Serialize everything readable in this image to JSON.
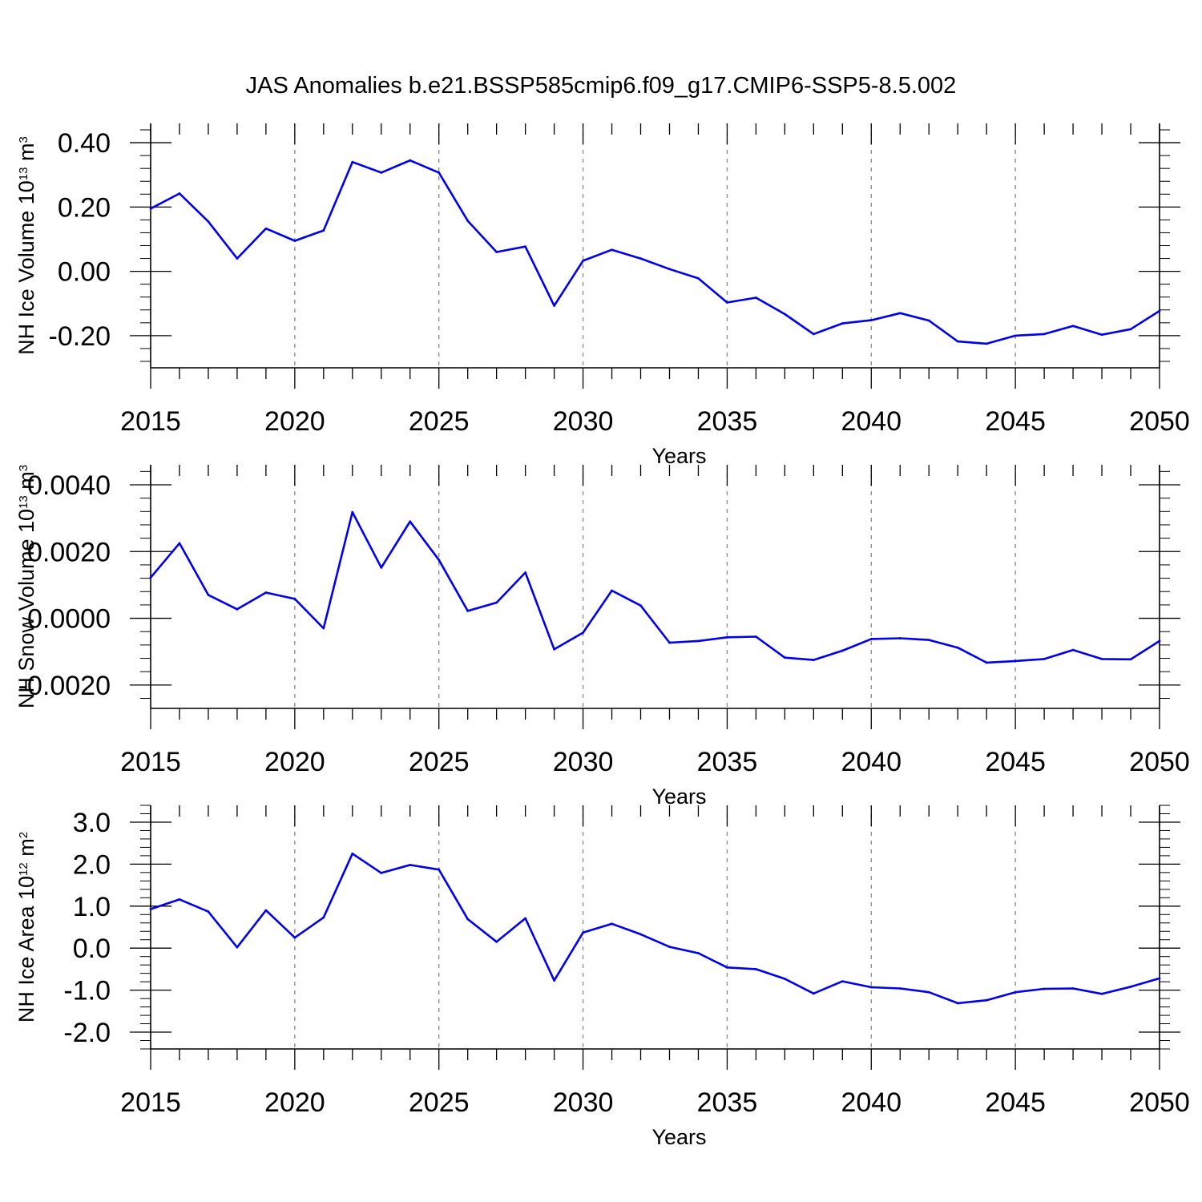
{
  "title": "JAS Anomalies b.e21.BSSP585cmip6.f09_g17.CMIP6-SSP5-8.5.002",
  "colors": {
    "line": "#0000ee",
    "axes": "#000000",
    "grid": "#888888"
  },
  "chart_data": [
    {
      "type": "line",
      "ylabel": {
        "text": "NH Ice Volume 10",
        "exp": "13",
        "unit": " m",
        "unit_exp": "3"
      },
      "xlabel": "Years",
      "xlim": [
        2015,
        2050
      ],
      "ylim": [
        -0.3,
        0.46
      ],
      "xticks": [
        2015,
        2020,
        2025,
        2030,
        2035,
        2040,
        2045,
        2050
      ],
      "xtick_labels": [
        "2015",
        "2020",
        "2025",
        "2030",
        "2035",
        "2040",
        "2045",
        "2050"
      ],
      "yticks": [
        0.4,
        0.2,
        0.0,
        -0.2
      ],
      "ytick_labels": [
        "0.40",
        "0.20",
        "0.00",
        "-0.20"
      ],
      "grid_x": [
        2020,
        2025,
        2030,
        2035,
        2040,
        2045
      ],
      "x": [
        2015,
        2016,
        2017,
        2018,
        2019,
        2020,
        2021,
        2022,
        2023,
        2024,
        2025,
        2026,
        2027,
        2028,
        2029,
        2030,
        2031,
        2032,
        2033,
        2034,
        2035,
        2036,
        2037,
        2038,
        2039,
        2040,
        2041,
        2042,
        2043,
        2044,
        2045,
        2046,
        2047,
        2048,
        2049,
        2050
      ],
      "values": [
        0.195,
        0.242,
        0.155,
        0.04,
        0.133,
        0.095,
        0.127,
        0.34,
        0.307,
        0.345,
        0.307,
        0.157,
        0.06,
        0.077,
        -0.107,
        0.033,
        0.067,
        0.04,
        0.007,
        -0.022,
        -0.097,
        -0.082,
        -0.133,
        -0.195,
        -0.162,
        -0.152,
        -0.13,
        -0.153,
        -0.218,
        -0.225,
        -0.2,
        -0.195,
        -0.17,
        -0.197,
        -0.18,
        -0.123
      ]
    },
    {
      "type": "line",
      "ylabel": {
        "text": "NH Snow Volume 10",
        "exp": "13",
        "unit": " m",
        "unit_exp": "3"
      },
      "xlabel": "Years",
      "xlim": [
        2015,
        2050
      ],
      "ylim": [
        -0.0027,
        0.0046
      ],
      "xticks": [
        2015,
        2020,
        2025,
        2030,
        2035,
        2040,
        2045,
        2050
      ],
      "xtick_labels": [
        "2015",
        "2020",
        "2025",
        "2030",
        "2035",
        "2040",
        "2045",
        "2050"
      ],
      "yticks": [
        0.004,
        0.002,
        0.0,
        -0.002
      ],
      "ytick_labels": [
        "0.0040",
        "0.0020",
        "0.0000",
        "-0.0020"
      ],
      "grid_x": [
        2020,
        2025,
        2030,
        2035,
        2040,
        2045
      ],
      "x": [
        2015,
        2016,
        2017,
        2018,
        2019,
        2020,
        2021,
        2022,
        2023,
        2024,
        2025,
        2026,
        2027,
        2028,
        2029,
        2030,
        2031,
        2032,
        2033,
        2034,
        2035,
        2036,
        2037,
        2038,
        2039,
        2040,
        2041,
        2042,
        2043,
        2044,
        2045,
        2046,
        2047,
        2048,
        2049,
        2050
      ],
      "values": [
        0.00122,
        0.00225,
        0.0007,
        0.00027,
        0.00077,
        0.00058,
        -0.0003,
        0.00318,
        0.00152,
        0.0029,
        0.00175,
        0.00022,
        0.00047,
        0.00137,
        -0.00093,
        -0.00043,
        0.00083,
        0.00038,
        -0.00073,
        -0.00068,
        -0.00057,
        -0.00055,
        -0.00118,
        -0.00125,
        -0.00097,
        -0.00062,
        -0.0006,
        -0.00065,
        -0.00088,
        -0.00133,
        -0.00128,
        -0.00122,
        -0.00095,
        -0.00122,
        -0.00123,
        -0.00068
      ]
    },
    {
      "type": "line",
      "ylabel": {
        "text": "NH Ice Area 10",
        "exp": "12",
        "unit": " m",
        "unit_exp": "2"
      },
      "xlabel": "Years",
      "xlim": [
        2015,
        2050
      ],
      "ylim": [
        -2.4,
        3.4
      ],
      "xticks": [
        2015,
        2020,
        2025,
        2030,
        2035,
        2040,
        2045,
        2050
      ],
      "xtick_labels": [
        "2015",
        "2020",
        "2025",
        "2030",
        "2035",
        "2040",
        "2045",
        "2050"
      ],
      "yticks": [
        3.0,
        2.0,
        1.0,
        0.0,
        -1.0,
        -2.0
      ],
      "ytick_labels": [
        "3.0",
        "2.0",
        "1.0",
        "0.0",
        "-1.0",
        "-2.0"
      ],
      "grid_x": [
        2020,
        2025,
        2030,
        2035,
        2040,
        2045
      ],
      "x": [
        2015,
        2016,
        2017,
        2018,
        2019,
        2020,
        2021,
        2022,
        2023,
        2024,
        2025,
        2026,
        2027,
        2028,
        2029,
        2030,
        2031,
        2032,
        2033,
        2034,
        2035,
        2036,
        2037,
        2038,
        2039,
        2040,
        2041,
        2042,
        2043,
        2044,
        2045,
        2046,
        2047,
        2048,
        2049,
        2050
      ],
      "values": [
        0.93,
        1.16,
        0.87,
        0.02,
        0.9,
        0.25,
        0.73,
        2.25,
        1.79,
        1.98,
        1.87,
        0.69,
        0.15,
        0.71,
        -0.77,
        0.37,
        0.58,
        0.33,
        0.03,
        -0.12,
        -0.46,
        -0.5,
        -0.73,
        -1.08,
        -0.79,
        -0.93,
        -0.96,
        -1.05,
        -1.31,
        -1.24,
        -1.05,
        -0.97,
        -0.96,
        -1.09,
        -0.92,
        -0.72
      ]
    }
  ]
}
